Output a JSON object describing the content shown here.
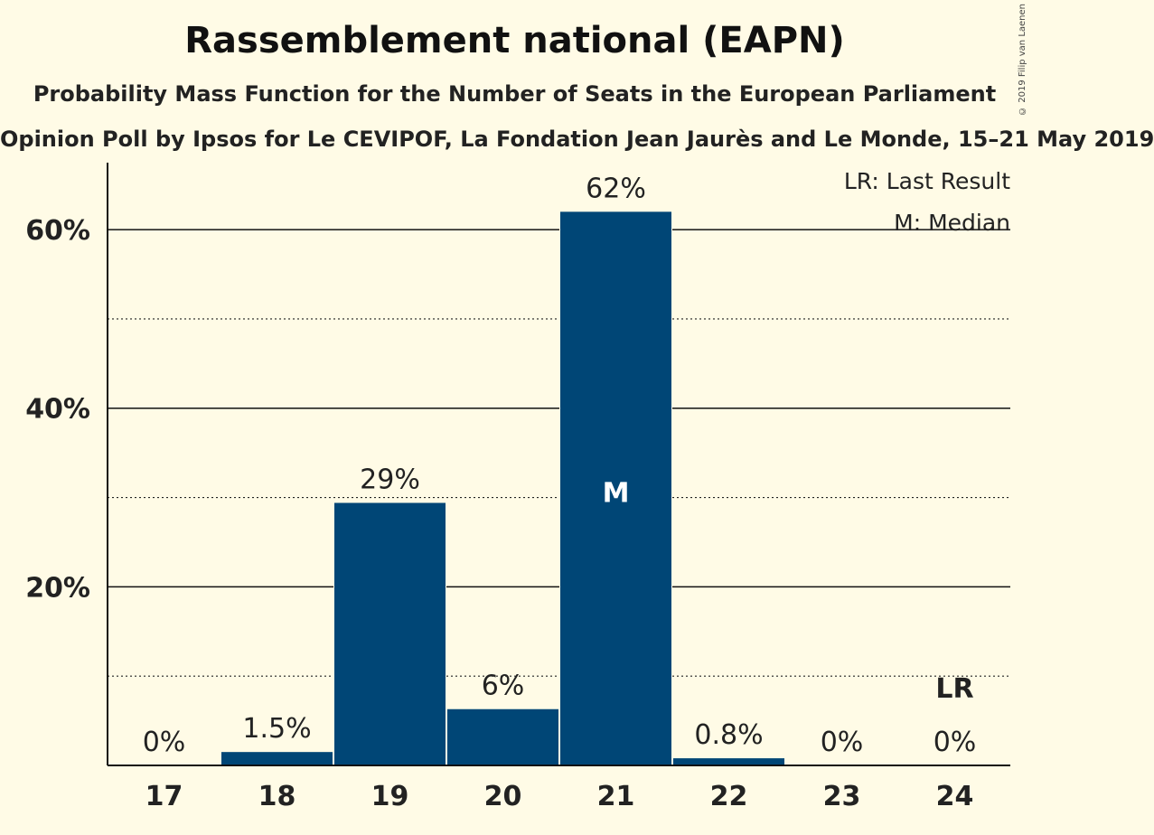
{
  "title": "Rassemblement national (EAPN)",
  "subtitle": "Probability Mass Function for the Number of Seats in the European Parliament",
  "source": "Opinion Poll by Ipsos for Le CEVIPOF, La Fondation Jean Jaurès and Le Monde, 15–21 May 2019",
  "copyright": "© 2019 Filip van Laenen",
  "legend": {
    "last_result": "LR: Last Result",
    "median": "M: Median"
  },
  "chart_data": {
    "type": "bar",
    "categories": [
      "17",
      "18",
      "19",
      "20",
      "21",
      "22",
      "23",
      "24"
    ],
    "values": [
      0,
      1.5,
      29.4,
      6.3,
      62.0,
      0.8,
      0,
      0
    ],
    "data_labels": [
      "0%",
      "1.5%",
      "29%",
      "6%",
      "62%",
      "0.8%",
      "0%",
      "0%"
    ],
    "bar_color": "#004676",
    "median_category": "21",
    "median_marker": "M",
    "last_result_category": "24",
    "last_result_marker": "LR",
    "ylim": [
      0,
      67.5
    ],
    "yticks": [
      20,
      40,
      60
    ],
    "ytick_labels": [
      "20%",
      "40%",
      "60%"
    ],
    "minor_gridlines": [
      10,
      30,
      50
    ],
    "grid": true,
    "legend_position": "top-right"
  }
}
